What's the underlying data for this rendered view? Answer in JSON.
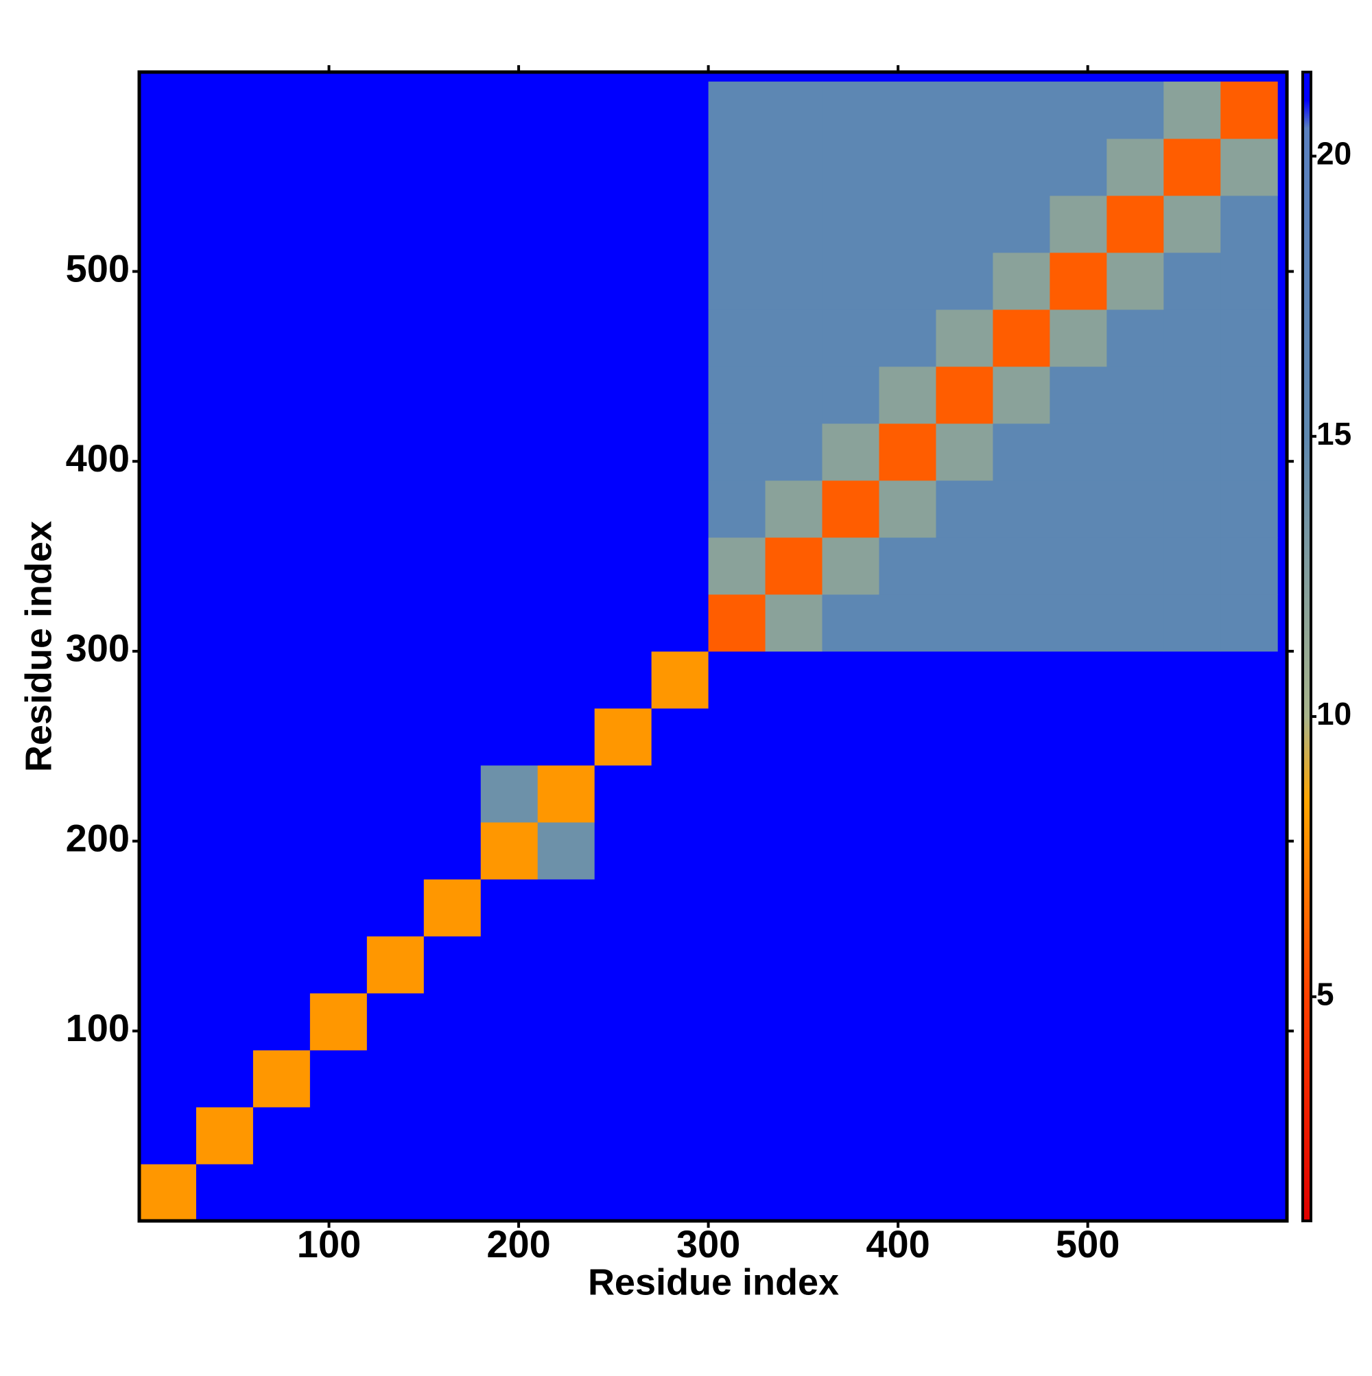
{
  "chart_data": {
    "type": "heatmap",
    "x_label": "Residue index",
    "y_label": "Residue index",
    "xlim": [
      0,
      605
    ],
    "ylim": [
      0,
      605
    ],
    "xticks": [
      100,
      200,
      300,
      400,
      500
    ],
    "yticks": [
      100,
      200,
      300,
      400,
      500
    ],
    "xbins": [
      0,
      30,
      60,
      90,
      120,
      150,
      180,
      210,
      240,
      270,
      300,
      330,
      360,
      390,
      420,
      450,
      480,
      510,
      540,
      570,
      600
    ],
    "ybins": [
      0,
      30,
      60,
      90,
      120,
      150,
      180,
      210,
      240,
      270,
      300,
      330,
      360,
      390,
      420,
      450,
      480,
      510,
      540,
      570,
      600
    ],
    "z": [
      [
        8,
        21,
        21,
        21,
        21,
        21,
        21,
        21,
        21,
        21,
        21,
        21,
        21,
        21,
        21,
        21,
        21,
        21,
        21,
        21
      ],
      [
        21,
        8,
        21,
        21,
        21,
        21,
        21,
        21,
        21,
        21,
        21,
        21,
        21,
        21,
        21,
        21,
        21,
        21,
        21,
        21
      ],
      [
        21,
        21,
        8,
        21,
        21,
        21,
        21,
        21,
        21,
        21,
        21,
        21,
        21,
        21,
        21,
        21,
        21,
        21,
        21,
        21
      ],
      [
        21,
        21,
        21,
        8,
        21,
        21,
        21,
        21,
        21,
        21,
        21,
        21,
        21,
        21,
        21,
        21,
        21,
        21,
        21,
        21
      ],
      [
        21,
        21,
        21,
        21,
        8,
        21,
        21,
        21,
        21,
        21,
        21,
        21,
        21,
        21,
        21,
        21,
        21,
        21,
        21,
        21
      ],
      [
        21,
        21,
        21,
        21,
        21,
        8,
        21,
        21,
        21,
        21,
        21,
        21,
        21,
        21,
        21,
        21,
        21,
        21,
        21,
        21
      ],
      [
        21,
        21,
        21,
        21,
        21,
        21,
        8,
        14,
        21,
        21,
        21,
        21,
        21,
        21,
        21,
        21,
        21,
        21,
        21,
        21
      ],
      [
        21,
        21,
        21,
        21,
        21,
        21,
        14,
        8,
        21,
        21,
        21,
        21,
        21,
        21,
        21,
        21,
        21,
        21,
        21,
        21
      ],
      [
        21,
        21,
        21,
        21,
        21,
        21,
        21,
        21,
        8,
        21,
        21,
        21,
        21,
        21,
        21,
        21,
        21,
        21,
        21,
        21
      ],
      [
        21,
        21,
        21,
        21,
        21,
        21,
        21,
        21,
        21,
        8,
        21,
        21,
        21,
        21,
        21,
        21,
        21,
        21,
        21,
        21
      ],
      [
        21,
        21,
        21,
        21,
        21,
        21,
        21,
        21,
        21,
        21,
        6,
        12,
        16,
        16,
        16,
        16,
        16,
        16,
        16,
        16
      ],
      [
        21,
        21,
        21,
        21,
        21,
        21,
        21,
        21,
        21,
        21,
        12,
        6,
        12,
        16,
        16,
        16,
        16,
        16,
        16,
        16
      ],
      [
        21,
        21,
        21,
        21,
        21,
        21,
        21,
        21,
        21,
        21,
        16,
        12,
        6,
        12,
        16,
        16,
        16,
        16,
        16,
        16
      ],
      [
        21,
        21,
        21,
        21,
        21,
        21,
        21,
        21,
        21,
        21,
        16,
        16,
        12,
        6,
        12,
        16,
        16,
        16,
        16,
        16
      ],
      [
        21,
        21,
        21,
        21,
        21,
        21,
        21,
        21,
        21,
        21,
        16,
        16,
        16,
        12,
        6,
        12,
        16,
        16,
        16,
        16
      ],
      [
        21,
        21,
        21,
        21,
        21,
        21,
        21,
        21,
        21,
        21,
        16,
        16,
        16,
        16,
        12,
        6,
        12,
        16,
        16,
        16
      ],
      [
        21,
        21,
        21,
        21,
        21,
        21,
        21,
        21,
        21,
        21,
        16,
        16,
        16,
        16,
        16,
        12,
        6,
        12,
        16,
        16
      ],
      [
        21,
        21,
        21,
        21,
        21,
        21,
        21,
        21,
        21,
        21,
        16,
        16,
        16,
        16,
        16,
        16,
        12,
        6,
        12,
        16
      ],
      [
        21,
        21,
        21,
        21,
        21,
        21,
        21,
        21,
        21,
        21,
        16,
        16,
        16,
        16,
        16,
        16,
        16,
        12,
        6,
        12
      ],
      [
        21,
        21,
        21,
        21,
        21,
        21,
        21,
        21,
        21,
        21,
        16,
        16,
        16,
        16,
        16,
        16,
        16,
        16,
        12,
        6
      ]
    ],
    "colorscale": [
      {
        "value": 1,
        "color": "#e00000"
      },
      {
        "value": 5,
        "color": "#ff4000"
      },
      {
        "value": 8.5,
        "color": "#ffa500"
      },
      {
        "value": 10,
        "color": "#a8b48c"
      },
      {
        "value": 15,
        "color": "#5e88b0"
      },
      {
        "value": 20.5,
        "color": "#5a80c0"
      },
      {
        "value": 21,
        "color": "#0000ff"
      }
    ],
    "clim": [
      1,
      21.5
    ],
    "cticks": [
      5,
      10,
      15,
      20
    ]
  }
}
